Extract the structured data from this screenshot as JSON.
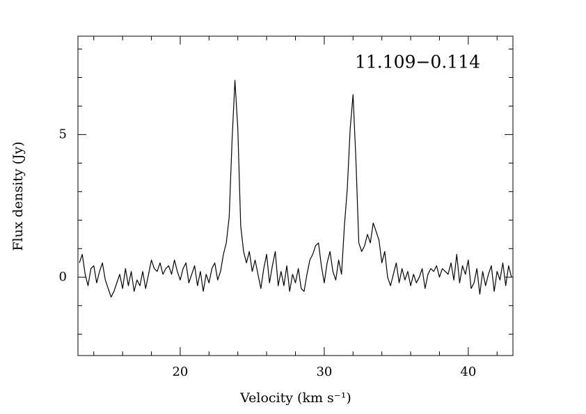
{
  "chart_data": {
    "type": "line",
    "annotation": "11.109−0.114",
    "xlabel": "Velocity (km s⁻¹)",
    "ylabel": "Flux density (Jy)",
    "xlim": [
      12.9,
      43.1
    ],
    "ylim": [
      -2.75,
      8.45
    ],
    "xticks": [
      20,
      30,
      40
    ],
    "yticks": [
      0,
      5
    ],
    "xminorticks": [
      14,
      16,
      18,
      22,
      24,
      26,
      28,
      32,
      34,
      36,
      38,
      42
    ],
    "yminorticks": [
      -2,
      -1,
      1,
      2,
      3,
      4,
      6,
      7,
      8
    ],
    "series": [
      {
        "color": "#000000",
        "x": [
          13,
          13.2,
          13.4,
          13.6,
          13.8,
          14,
          14.2,
          14.4,
          14.6,
          14.8,
          15,
          15.2,
          15.4,
          15.6,
          15.8,
          16,
          16.2,
          16.4,
          16.6,
          16.8,
          17,
          17.2,
          17.4,
          17.6,
          17.8,
          18,
          18.2,
          18.4,
          18.6,
          18.8,
          19,
          19.2,
          19.4,
          19.6,
          19.8,
          20,
          20.2,
          20.4,
          20.6,
          20.8,
          21,
          21.2,
          21.4,
          21.6,
          21.8,
          22,
          22.2,
          22.4,
          22.6,
          22.8,
          23,
          23.2,
          23.4,
          23.6,
          23.8,
          24,
          24.2,
          24.4,
          24.6,
          24.8,
          25,
          25.2,
          25.4,
          25.6,
          25.8,
          26,
          26.2,
          26.4,
          26.6,
          26.8,
          27,
          27.2,
          27.4,
          27.6,
          27.8,
          28,
          28.2,
          28.4,
          28.6,
          28.8,
          29,
          29.2,
          29.4,
          29.6,
          29.8,
          30,
          30.2,
          30.4,
          30.6,
          30.8,
          31,
          31.2,
          31.4,
          31.6,
          31.8,
          32,
          32.2,
          32.4,
          32.6,
          32.8,
          33,
          33.2,
          33.4,
          33.6,
          33.8,
          34,
          34.2,
          34.4,
          34.6,
          34.8,
          35,
          35.2,
          35.4,
          35.6,
          35.8,
          36,
          36.2,
          36.4,
          36.6,
          36.8,
          37,
          37.2,
          37.4,
          37.6,
          37.8,
          38,
          38.2,
          38.4,
          38.6,
          38.8,
          39,
          39.2,
          39.4,
          39.6,
          39.8,
          40,
          40.2,
          40.4,
          40.6,
          40.8,
          41,
          41.2,
          41.4,
          41.6,
          41.8,
          42,
          42.2,
          42.4,
          42.6,
          42.8,
          43
        ],
        "values": [
          0.5,
          0.8,
          0.1,
          -0.3,
          0.3,
          0.4,
          -0.2,
          0.2,
          0.5,
          -0.1,
          -0.4,
          -0.7,
          -0.5,
          -0.2,
          0.1,
          -0.4,
          0.3,
          -0.3,
          0.2,
          -0.5,
          -0.1,
          -0.3,
          0.2,
          -0.4,
          0.1,
          0.6,
          0.3,
          0.2,
          0.5,
          0.1,
          0.3,
          0.4,
          0.1,
          0.6,
          0.2,
          -0.1,
          0.3,
          0.5,
          -0.2,
          0.1,
          0.4,
          -0.3,
          0.2,
          -0.5,
          0.1,
          -0.2,
          0.3,
          0.5,
          -0.1,
          0.2,
          0.8,
          1.2,
          2.1,
          4.8,
          6.9,
          5.2,
          1.8,
          0.9,
          0.5,
          0.9,
          0.2,
          0.6,
          0.1,
          -0.4,
          0.3,
          0.8,
          -0.2,
          0.4,
          0.9,
          -0.3,
          0.2,
          -0.3,
          0.4,
          -0.5,
          0.1,
          -0.2,
          0.3,
          -0.4,
          -0.5,
          0.1,
          0.6,
          0.8,
          1.1,
          1.2,
          0.4,
          -0.2,
          0.5,
          0.9,
          0.2,
          -0.1,
          0.6,
          0.1,
          1.8,
          3.1,
          5.2,
          6.4,
          4.1,
          1.2,
          0.9,
          1.1,
          1.5,
          1.2,
          1.9,
          1.6,
          1.3,
          0.5,
          0.9,
          0.0,
          -0.3,
          0.1,
          0.5,
          -0.2,
          0.3,
          -0.1,
          0.2,
          -0.3,
          0.1,
          -0.2,
          0.0,
          0.3,
          -0.4,
          0.1,
          0.3,
          0.2,
          0.4,
          0.0,
          0.3,
          0.2,
          0.1,
          0.5,
          -0.1,
          0.8,
          -0.2,
          0.4,
          0.1,
          0.6,
          -0.4,
          -0.2,
          0.3,
          -0.6,
          0.2,
          -0.3,
          0.1,
          0.4,
          -0.5,
          0.2,
          -0.1,
          0.5,
          -0.3,
          0.4,
          0.0
        ]
      }
    ]
  }
}
